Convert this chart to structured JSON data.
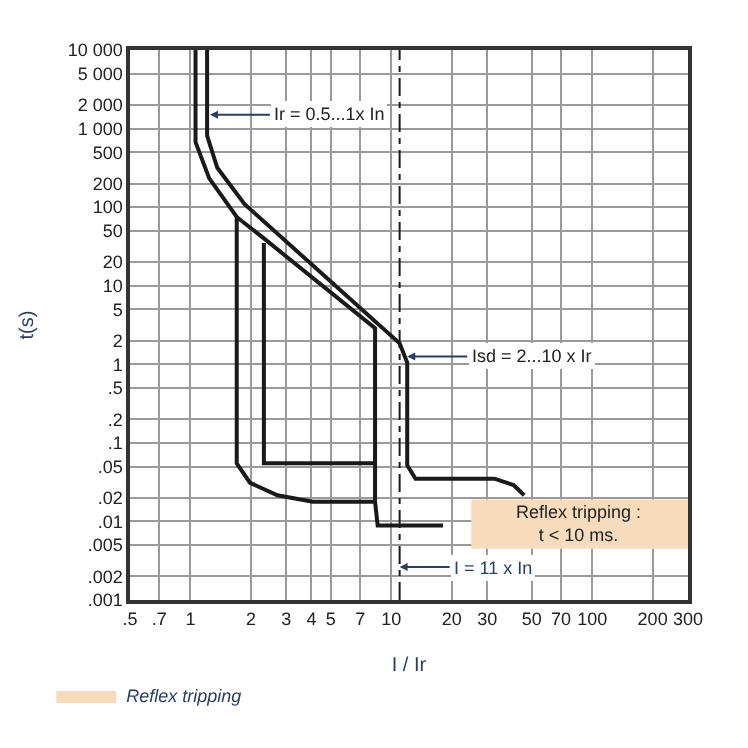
{
  "chart_data": {
    "type": "line",
    "xlabel": "I / Ir",
    "ylabel": "t(s)",
    "log": "xy",
    "grid": true,
    "legend": "bottom left",
    "line_style": "solid",
    "marker": "none",
    "xlim": [
      0.5,
      300
    ],
    "ylim": [
      0.001,
      10000
    ],
    "xticks": [
      {
        "value": 0.5,
        "label": ".5"
      },
      {
        "value": 0.7,
        "label": ".7"
      },
      1,
      2,
      3,
      4,
      5,
      7,
      10,
      20,
      30,
      50,
      70,
      100,
      200,
      300
    ],
    "yticks": [
      {
        "value": 0.001,
        "label": ".001"
      },
      {
        "value": 0.002,
        "label": ".002"
      },
      {
        "value": 0.005,
        "label": ".005"
      },
      {
        "value": 0.01,
        "label": ".01"
      },
      {
        "value": 0.02,
        "label": ".02"
      },
      {
        "value": 0.05,
        "label": ".05"
      },
      {
        "value": 0.1,
        "label": ".1"
      },
      {
        "value": 0.2,
        "label": ".2"
      },
      {
        "value": 0.5,
        "label": ".5"
      },
      1,
      2,
      5,
      10,
      20,
      50,
      100,
      200,
      500,
      {
        "value": 1000,
        "label": "1 000"
      },
      {
        "value": 2000,
        "label": "2 000"
      },
      {
        "value": 5000,
        "label": "5 000"
      },
      {
        "value": 10000,
        "label": "10 000"
      }
    ],
    "series": [
      {
        "color": "#1a1a1a",
        "x": [
          1.06,
          1.06,
          1.24,
          1.7,
          2.32,
          8.3,
          8.3,
          8.55,
          18.1
        ],
        "values": [
          10000,
          670,
          232,
          75,
          40,
          2.87,
          0.0178,
          0.0089,
          0.0089
        ]
      },
      {
        "color": "#1a1a1a",
        "x": [
          1.7,
          1.7,
          1.98,
          2.71,
          4.06,
          8.3
        ],
        "values": [
          75,
          0.055,
          0.031,
          0.0215,
          0.0178,
          0.0178
        ]
      },
      {
        "color": "#1a1a1a",
        "x": [
          2.32,
          2.32,
          8.3
        ],
        "values": [
          35,
          0.055,
          0.055
        ]
      },
      {
        "color": "#1a1a1a",
        "x": [
          1.21,
          1.21,
          1.36,
          1.86,
          11.0,
          12.0,
          12.0,
          13.2,
          32.6,
          40.6,
          45.9
        ],
        "values": [
          10000,
          813,
          317,
          109,
          1.85,
          1.05,
          0.052,
          0.035,
          0.035,
          0.029,
          0.0215
        ]
      },
      {
        "type": "line",
        "name": "Reflex tripping",
        "color": "#f6dcbc",
        "x": [
          25,
          300
        ],
        "values": [
          null,
          null
        ],
        "upper": [
          0.019,
          0.019
        ],
        "lower": [
          0.0045,
          0.0045
        ]
      }
    ],
    "ref_lines": [
      {
        "axis": "x",
        "value": 11,
        "label": "I = 11 x In",
        "line_style": "dashdot",
        "color": "#1a1a1a"
      }
    ],
    "annotations": [
      {
        "text": "Ir = 0.5...1x In",
        "x": 1.25,
        "y": 1500
      },
      {
        "text": "Isd = 2...10 x Ir",
        "x": 12,
        "y": 1.26
      },
      "Reflex tripping :\nt < 10 ms."
    ]
  }
}
